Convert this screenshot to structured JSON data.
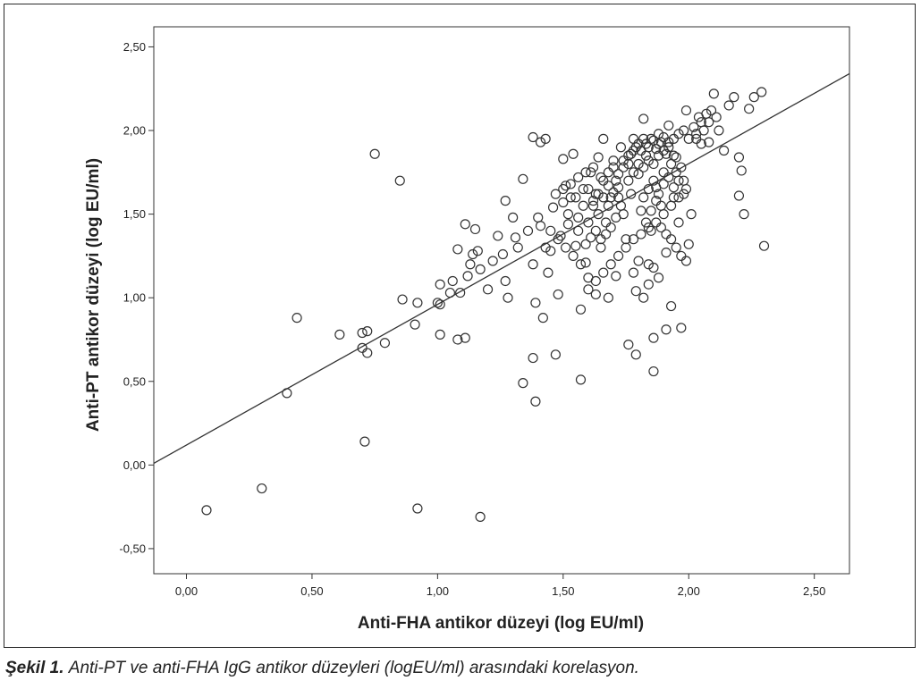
{
  "chart_data": {
    "type": "scatter",
    "xlabel": "Anti-FHA antikor düzeyi (log EU/ml)",
    "ylabel": "Anti-PT antikor düzeyi (log EU/ml)",
    "xlim": [
      -0.13,
      2.64
    ],
    "ylim": [
      -0.65,
      2.62
    ],
    "x_ticks": [
      0.0,
      0.5,
      1.0,
      1.5,
      2.0,
      2.5
    ],
    "x_tick_labels": [
      "0,00",
      "0,50",
      "1,00",
      "1,50",
      "2,00",
      "2,50"
    ],
    "y_ticks": [
      -0.5,
      0.0,
      0.5,
      1.0,
      1.5,
      2.0,
      2.5
    ],
    "y_tick_labels": [
      "-0,50",
      "0,00",
      "0,50",
      "1,00",
      "1,50",
      "2,00",
      "2,50"
    ],
    "grid": false,
    "legend": "none",
    "fit_line": {
      "x": [
        -0.13,
        2.64
      ],
      "y": [
        0.01,
        2.34
      ]
    },
    "points": [
      [
        0.08,
        -0.27
      ],
      [
        0.3,
        -0.14
      ],
      [
        0.4,
        0.43
      ],
      [
        0.44,
        0.88
      ],
      [
        0.61,
        0.78
      ],
      [
        0.7,
        0.7
      ],
      [
        0.7,
        0.79
      ],
      [
        0.72,
        0.8
      ],
      [
        0.72,
        0.67
      ],
      [
        0.71,
        0.14
      ],
      [
        0.75,
        1.86
      ],
      [
        0.79,
        0.73
      ],
      [
        0.85,
        1.7
      ],
      [
        0.86,
        0.99
      ],
      [
        0.91,
        0.84
      ],
      [
        0.92,
        0.97
      ],
      [
        0.92,
        -0.26
      ],
      [
        1.0,
        0.97
      ],
      [
        1.01,
        0.96
      ],
      [
        1.01,
        0.78
      ],
      [
        1.01,
        1.08
      ],
      [
        1.05,
        1.03
      ],
      [
        1.06,
        1.1
      ],
      [
        1.08,
        0.75
      ],
      [
        1.08,
        1.29
      ],
      [
        1.09,
        1.03
      ],
      [
        1.11,
        0.76
      ],
      [
        1.11,
        1.44
      ],
      [
        1.12,
        1.13
      ],
      [
        1.13,
        1.2
      ],
      [
        1.14,
        1.26
      ],
      [
        1.15,
        1.41
      ],
      [
        1.16,
        1.28
      ],
      [
        1.17,
        1.17
      ],
      [
        1.17,
        -0.31
      ],
      [
        1.2,
        1.05
      ],
      [
        1.22,
        1.22
      ],
      [
        1.24,
        1.37
      ],
      [
        1.26,
        1.26
      ],
      [
        1.27,
        1.58
      ],
      [
        1.27,
        1.1
      ],
      [
        1.28,
        1.0
      ],
      [
        1.3,
        1.48
      ],
      [
        1.31,
        1.36
      ],
      [
        1.32,
        1.3
      ],
      [
        1.34,
        1.71
      ],
      [
        1.34,
        0.49
      ],
      [
        1.36,
        1.4
      ],
      [
        1.38,
        0.64
      ],
      [
        1.38,
        1.2
      ],
      [
        1.38,
        1.96
      ],
      [
        1.39,
        0.38
      ],
      [
        1.39,
        0.97
      ],
      [
        1.4,
        1.48
      ],
      [
        1.41,
        1.93
      ],
      [
        1.41,
        1.43
      ],
      [
        1.42,
        0.88
      ],
      [
        1.43,
        1.95
      ],
      [
        1.43,
        1.3
      ],
      [
        1.44,
        1.15
      ],
      [
        1.45,
        1.28
      ],
      [
        1.46,
        1.54
      ],
      [
        1.47,
        0.66
      ],
      [
        1.48,
        1.02
      ],
      [
        1.49,
        1.37
      ],
      [
        1.5,
        1.57
      ],
      [
        1.5,
        1.83
      ],
      [
        1.51,
        1.67
      ],
      [
        1.52,
        1.44
      ],
      [
        1.53,
        1.6
      ],
      [
        1.54,
        1.86
      ],
      [
        1.55,
        1.31
      ],
      [
        1.56,
        1.48
      ],
      [
        1.57,
        0.51
      ],
      [
        1.57,
        0.93
      ],
      [
        1.58,
        1.65
      ],
      [
        1.59,
        1.21
      ],
      [
        1.6,
        1.12
      ],
      [
        1.61,
        1.75
      ],
      [
        1.62,
        1.55
      ],
      [
        1.63,
        1.62
      ],
      [
        1.63,
        1.02
      ],
      [
        1.64,
        1.84
      ],
      [
        1.65,
        1.3
      ],
      [
        1.66,
        1.95
      ],
      [
        1.66,
        1.7
      ],
      [
        1.67,
        1.45
      ],
      [
        1.68,
        1.0
      ],
      [
        1.69,
        1.6
      ],
      [
        1.7,
        1.78
      ],
      [
        1.71,
        1.13
      ],
      [
        1.72,
        1.66
      ],
      [
        1.73,
        1.9
      ],
      [
        1.74,
        1.5
      ],
      [
        1.75,
        1.35
      ],
      [
        1.76,
        0.72
      ],
      [
        1.76,
        1.8
      ],
      [
        1.77,
        1.62
      ],
      [
        1.78,
        1.95
      ],
      [
        1.79,
        1.04
      ],
      [
        1.79,
        0.66
      ],
      [
        1.8,
        1.74
      ],
      [
        1.81,
        1.52
      ],
      [
        1.82,
        2.07
      ],
      [
        1.83,
        1.85
      ],
      [
        1.84,
        1.2
      ],
      [
        1.85,
        1.4
      ],
      [
        1.86,
        0.56
      ],
      [
        1.86,
        0.76
      ],
      [
        1.87,
        1.66
      ],
      [
        1.88,
        1.92
      ],
      [
        1.89,
        1.55
      ],
      [
        1.9,
        1.75
      ],
      [
        1.91,
        1.27
      ],
      [
        1.91,
        0.81
      ],
      [
        1.92,
        2.03
      ],
      [
        1.93,
        0.95
      ],
      [
        1.94,
        1.6
      ],
      [
        1.95,
        1.84
      ],
      [
        1.96,
        1.45
      ],
      [
        1.97,
        0.82
      ],
      [
        1.98,
        1.7
      ],
      [
        1.99,
        2.12
      ],
      [
        2.0,
        1.32
      ],
      [
        2.01,
        1.5
      ],
      [
        2.03,
        1.95
      ],
      [
        2.05,
        2.05
      ],
      [
        2.07,
        2.1
      ],
      [
        2.08,
        1.93
      ],
      [
        2.1,
        2.22
      ],
      [
        2.12,
        2.0
      ],
      [
        2.14,
        1.88
      ],
      [
        2.16,
        2.15
      ],
      [
        2.18,
        2.2
      ],
      [
        2.2,
        1.61
      ],
      [
        2.2,
        1.84
      ],
      [
        2.21,
        1.76
      ],
      [
        2.22,
        1.5
      ],
      [
        2.24,
        2.13
      ],
      [
        2.26,
        2.2
      ],
      [
        2.29,
        2.23
      ],
      [
        2.3,
        1.31
      ],
      [
        1.6,
        1.65
      ],
      [
        1.62,
        1.58
      ],
      [
        1.64,
        1.62
      ],
      [
        1.66,
        1.6
      ],
      [
        1.68,
        1.67
      ],
      [
        1.7,
        1.63
      ],
      [
        1.55,
        1.6
      ],
      [
        1.58,
        1.55
      ],
      [
        1.52,
        1.5
      ],
      [
        1.56,
        1.4
      ],
      [
        1.6,
        1.45
      ],
      [
        1.64,
        1.5
      ],
      [
        1.68,
        1.55
      ],
      [
        1.72,
        1.6
      ],
      [
        1.76,
        1.7
      ],
      [
        1.78,
        1.75
      ],
      [
        1.8,
        1.8
      ],
      [
        1.82,
        1.78
      ],
      [
        1.84,
        1.82
      ],
      [
        1.86,
        1.8
      ],
      [
        1.88,
        1.85
      ],
      [
        1.9,
        1.88
      ],
      [
        1.92,
        1.9
      ],
      [
        1.94,
        1.85
      ],
      [
        1.74,
        1.82
      ],
      [
        1.77,
        1.86
      ],
      [
        1.79,
        1.9
      ],
      [
        1.81,
        1.88
      ],
      [
        1.83,
        1.92
      ],
      [
        1.85,
        1.95
      ],
      [
        1.87,
        1.89
      ],
      [
        1.89,
        1.93
      ],
      [
        1.91,
        1.86
      ],
      [
        1.93,
        1.8
      ],
      [
        1.95,
        1.75
      ],
      [
        1.97,
        1.78
      ],
      [
        1.99,
        1.65
      ],
      [
        1.96,
        1.6
      ],
      [
        1.93,
        1.55
      ],
      [
        1.9,
        1.5
      ],
      [
        1.87,
        1.45
      ],
      [
        1.84,
        1.42
      ],
      [
        1.81,
        1.38
      ],
      [
        1.78,
        1.35
      ],
      [
        1.75,
        1.3
      ],
      [
        1.72,
        1.25
      ],
      [
        1.69,
        1.2
      ],
      [
        1.66,
        1.15
      ],
      [
        1.63,
        1.1
      ],
      [
        1.6,
        1.05
      ],
      [
        1.57,
        1.2
      ],
      [
        1.54,
        1.25
      ],
      [
        1.51,
        1.3
      ],
      [
        1.48,
        1.35
      ],
      [
        1.45,
        1.4
      ],
      [
        1.47,
        1.62
      ],
      [
        1.5,
        1.65
      ],
      [
        1.53,
        1.68
      ],
      [
        1.56,
        1.72
      ],
      [
        1.59,
        1.75
      ],
      [
        1.62,
        1.78
      ],
      [
        1.65,
        1.72
      ],
      [
        1.68,
        1.75
      ],
      [
        1.71,
        1.7
      ],
      [
        1.73,
        1.55
      ],
      [
        1.71,
        1.48
      ],
      [
        1.69,
        1.42
      ],
      [
        1.67,
        1.38
      ],
      [
        1.65,
        1.35
      ],
      [
        1.63,
        1.4
      ],
      [
        1.61,
        1.36
      ],
      [
        1.59,
        1.32
      ],
      [
        1.82,
        1.6
      ],
      [
        1.84,
        1.65
      ],
      [
        1.86,
        1.7
      ],
      [
        1.88,
        1.62
      ],
      [
        1.9,
        1.68
      ],
      [
        1.92,
        1.72
      ],
      [
        1.94,
        1.66
      ],
      [
        1.96,
        1.7
      ],
      [
        1.98,
        1.62
      ],
      [
        1.83,
        1.45
      ],
      [
        1.85,
        1.52
      ],
      [
        1.87,
        1.58
      ],
      [
        1.89,
        1.42
      ],
      [
        1.91,
        1.38
      ],
      [
        1.93,
        1.35
      ],
      [
        1.95,
        1.3
      ],
      [
        1.97,
        1.25
      ],
      [
        1.99,
        1.22
      ],
      [
        1.88,
        1.12
      ],
      [
        1.86,
        1.18
      ],
      [
        1.84,
        1.08
      ],
      [
        1.82,
        1.0
      ],
      [
        1.8,
        1.22
      ],
      [
        1.78,
        1.15
      ],
      [
        2.02,
        2.02
      ],
      [
        2.04,
        2.08
      ],
      [
        2.06,
        2.0
      ],
      [
        2.08,
        2.05
      ],
      [
        2.09,
        2.12
      ],
      [
        2.11,
        2.08
      ],
      [
        2.03,
        1.98
      ],
      [
        2.05,
        1.92
      ],
      [
        2.0,
        1.95
      ],
      [
        1.98,
        2.0
      ],
      [
        1.96,
        1.98
      ],
      [
        1.94,
        1.95
      ],
      [
        1.92,
        1.93
      ],
      [
        1.9,
        1.96
      ],
      [
        1.88,
        1.98
      ],
      [
        1.86,
        1.94
      ],
      [
        1.84,
        1.9
      ],
      [
        1.82,
        1.95
      ],
      [
        1.8,
        1.92
      ],
      [
        1.78,
        1.88
      ],
      [
        1.76,
        1.85
      ],
      [
        1.74,
        1.78
      ],
      [
        1.72,
        1.74
      ],
      [
        1.7,
        1.82
      ]
    ]
  },
  "caption": {
    "label": "Şekil 1.",
    "text": "Anti-PT ve anti-FHA IgG antikor düzeyleri (logEU/ml) arasındaki korelasyon."
  }
}
